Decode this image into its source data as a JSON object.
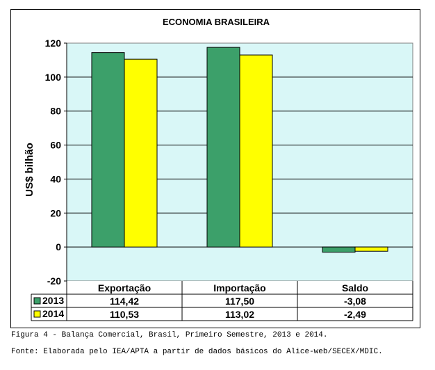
{
  "chart_data": {
    "type": "bar",
    "title": "ECONOMIA BRASILEIRA",
    "xlabel": "",
    "ylabel": "US$ bilhão",
    "ylim": [
      -20,
      120
    ],
    "yticks": [
      "-20",
      "0",
      "20",
      "40",
      "60",
      "80",
      "100",
      "120"
    ],
    "categories": [
      "Exportação",
      "Importação",
      "Saldo"
    ],
    "series": [
      {
        "name": "2013",
        "values": [
          114.42,
          117.5,
          -3.08
        ],
        "labels": [
          "114,42",
          "117,50",
          "-3,08"
        ],
        "color": "#3CA06A"
      },
      {
        "name": "2014",
        "values": [
          110.53,
          113.02,
          -2.49
        ],
        "labels": [
          "110,53",
          "113,02",
          "-2,49"
        ],
        "color": "#FFFF00"
      }
    ],
    "plot_background": "#D9F7F7",
    "grid": true,
    "legend": "data-table"
  },
  "caption": "Figura 4 - Balança Comercial, Brasil, Primeiro Semestre, 2013 e 2014.",
  "source": "Fonte: Elaborada pelo IEA/APTA a partir de dados básicos do Alice-web/SECEX/MDIC."
}
